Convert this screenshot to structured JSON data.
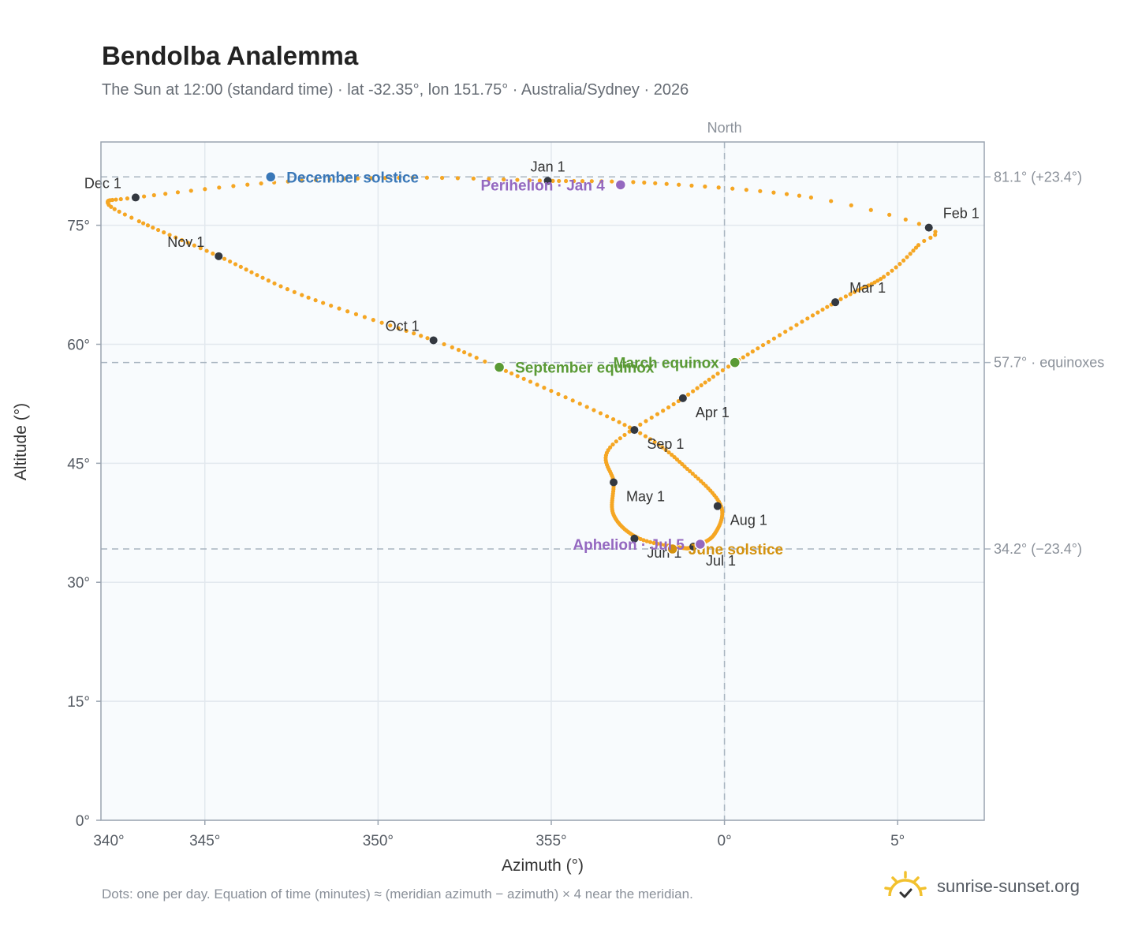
{
  "title": "Bendolba Analemma",
  "subtitle": "The Sun at 12:00 (standard time) · lat -32.35°, lon 151.75° · Australia/Sydney · 2026",
  "footnote": "Dots: one per day. Equation of time (minutes) ≈ (meridian azimuth − azimuth) × 4 near the meridian.",
  "brand": {
    "text": "sunrise-sunset.org",
    "icon": "sun-logo-icon"
  },
  "colors": {
    "path": "#f5a623",
    "month_marker": "#333840",
    "december_solstice": "#3a78b8",
    "june_solstice": "#d4920f",
    "equinox": "#5a9a35",
    "apsis": "#9468c0",
    "plot_bg": "#f8fbfd",
    "grid": "#e2e8ee",
    "ref_line": "#a8b4c0"
  },
  "chart_data": {
    "type": "scatter",
    "title": "Bendolba Analemma",
    "xlabel": "Azimuth (°)",
    "ylabel": "Altitude (°)",
    "xlim": [
      -18.0,
      7.5
    ],
    "ylim": [
      0,
      85.5
    ],
    "grid": true,
    "x_ticks": [
      {
        "value": -20,
        "label": "340°"
      },
      {
        "value": -15,
        "label": "345°"
      },
      {
        "value": -10,
        "label": "350°"
      },
      {
        "value": -5,
        "label": "355°"
      },
      {
        "value": 0,
        "label": "0°"
      },
      {
        "value": 5,
        "label": "5°"
      }
    ],
    "y_ticks": [
      {
        "value": 0,
        "label": "0°"
      },
      {
        "value": 15,
        "label": "15°"
      },
      {
        "value": 30,
        "label": "30°"
      },
      {
        "value": 45,
        "label": "45°"
      },
      {
        "value": 60,
        "label": "60°"
      },
      {
        "value": 75,
        "label": "75°"
      }
    ],
    "meridian": {
      "x": 0,
      "label": "North"
    },
    "reference_lines": [
      {
        "y": 81.1,
        "label": "81.1° (+23.4°)"
      },
      {
        "y": 57.7,
        "label": "57.7° · equinoxes"
      },
      {
        "y": 34.2,
        "label": "34.2° (−23.4°)"
      }
    ],
    "path_anchors": [
      {
        "day": 0,
        "az": -5.1,
        "alt": 80.6
      },
      {
        "day": 12,
        "az": -2.0,
        "alt": 80.3
      },
      {
        "day": 24,
        "az": 2.5,
        "alt": 78.5
      },
      {
        "day": 31,
        "az": 5.9,
        "alt": 74.7
      },
      {
        "day": 36,
        "az": 5.6,
        "alt": 72.5
      },
      {
        "day": 46,
        "az": 4.6,
        "alt": 68.5
      },
      {
        "day": 59,
        "az": 3.2,
        "alt": 65.3
      },
      {
        "day": 79,
        "az": 0.3,
        "alt": 57.7
      },
      {
        "day": 90,
        "az": -1.2,
        "alt": 53.2
      },
      {
        "day": 105,
        "az": -3.3,
        "alt": 47.0
      },
      {
        "day": 120,
        "az": -3.2,
        "alt": 42.6
      },
      {
        "day": 135,
        "az": -3.2,
        "alt": 38.5
      },
      {
        "day": 151,
        "az": -2.5,
        "alt": 35.6
      },
      {
        "day": 164,
        "az": -1.3,
        "alt": 34.4
      },
      {
        "day": 181,
        "az": -0.9,
        "alt": 34.5
      },
      {
        "day": 196,
        "az": -0.3,
        "alt": 36.0
      },
      {
        "day": 212,
        "az": -0.1,
        "alt": 39.6
      },
      {
        "day": 227,
        "az": -1.0,
        "alt": 44.0
      },
      {
        "day": 243,
        "az": -2.6,
        "alt": 49.2
      },
      {
        "day": 265,
        "az": -6.6,
        "alt": 57.2
      },
      {
        "day": 273,
        "az": -8.4,
        "alt": 60.5
      },
      {
        "day": 290,
        "az": -12.2,
        "alt": 66.2
      },
      {
        "day": 304,
        "az": -14.6,
        "alt": 71.1
      },
      {
        "day": 318,
        "az": -16.9,
        "alt": 75.5
      },
      {
        "day": 325,
        "az": -17.8,
        "alt": 77.8
      },
      {
        "day": 334,
        "az": -17.0,
        "alt": 78.5
      },
      {
        "day": 345,
        "az": -13.0,
        "alt": 80.4
      },
      {
        "day": 355,
        "az": -9.0,
        "alt": 81.0
      },
      {
        "day": 365,
        "az": -5.1,
        "alt": 80.6
      }
    ],
    "month_markers": [
      {
        "label": "Jan 1",
        "az": -5.1,
        "alt": 80.6,
        "anchor": "above"
      },
      {
        "label": "Feb 1",
        "az": 5.9,
        "alt": 74.7,
        "anchor": "right-above"
      },
      {
        "label": "Mar 1",
        "az": 3.2,
        "alt": 65.3,
        "anchor": "right-above"
      },
      {
        "label": "Apr 1",
        "az": -1.2,
        "alt": 53.2,
        "anchor": "right-below"
      },
      {
        "label": "May 1",
        "az": -3.2,
        "alt": 42.6,
        "anchor": "right-below"
      },
      {
        "label": "Jun 1",
        "az": -2.6,
        "alt": 35.5,
        "anchor": "right-below"
      },
      {
        "label": "Jul 1",
        "az": -0.9,
        "alt": 34.5,
        "anchor": "right-below"
      },
      {
        "label": "Aug 1",
        "az": -0.2,
        "alt": 39.6,
        "anchor": "right-below"
      },
      {
        "label": "Sep 1",
        "az": -2.6,
        "alt": 49.2,
        "anchor": "right-below"
      },
      {
        "label": "Oct 1",
        "az": -8.4,
        "alt": 60.5,
        "anchor": "left-above"
      },
      {
        "label": "Nov 1",
        "az": -14.6,
        "alt": 71.1,
        "anchor": "left-above"
      },
      {
        "label": "Dec 1",
        "az": -17.0,
        "alt": 78.5,
        "anchor": "left-above"
      }
    ],
    "events": [
      {
        "label": "December solstice",
        "az": -13.1,
        "alt": 81.1,
        "color_key": "december_solstice",
        "anchor": "right"
      },
      {
        "label": "Perihelion · Jan 4",
        "az": -3.0,
        "alt": 80.1,
        "color_key": "apsis",
        "anchor": "left"
      },
      {
        "label": "March equinox",
        "az": 0.3,
        "alt": 57.7,
        "color_key": "equinox",
        "anchor": "left"
      },
      {
        "label": "September equinox",
        "az": -6.5,
        "alt": 57.1,
        "color_key": "equinox",
        "anchor": "right"
      },
      {
        "label": "June solstice",
        "az": -1.5,
        "alt": 34.2,
        "color_key": "june_solstice",
        "anchor": "right"
      },
      {
        "label": "Aphelion · Jul 5",
        "az": -0.7,
        "alt": 34.8,
        "color_key": "apsis",
        "anchor": "left"
      }
    ]
  }
}
